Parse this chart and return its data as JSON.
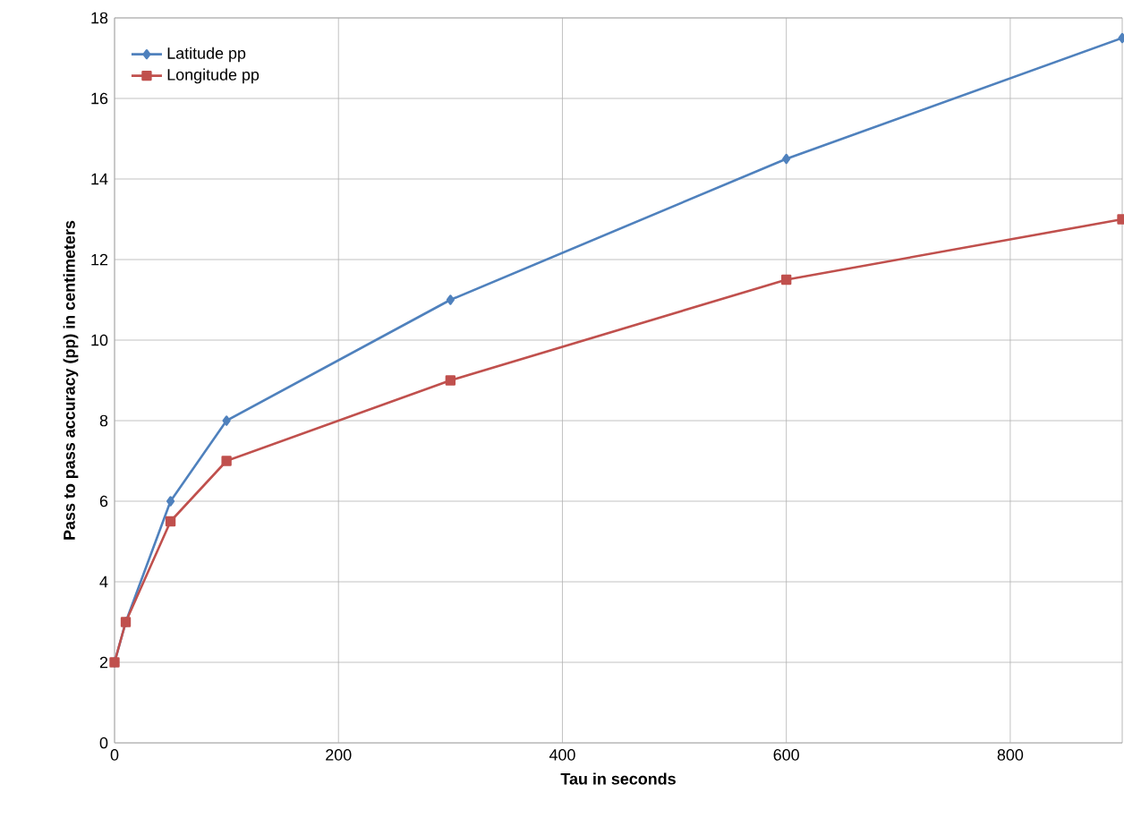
{
  "chart_data": {
    "type": "line",
    "xlabel": "Tau in seconds",
    "ylabel": "Pass to pass accuracy (pp) in centimeters",
    "x": [
      0,
      10,
      50,
      100,
      300,
      600,
      900
    ],
    "series": [
      {
        "name": "Latitude pp",
        "color": "#4f81bd",
        "marker": "diamond",
        "values": [
          2,
          3,
          6,
          8,
          11,
          14.5,
          17.5
        ]
      },
      {
        "name": "Longitude pp",
        "color": "#c0504d",
        "marker": "square",
        "values": [
          2,
          3,
          5.5,
          7,
          9,
          11.5,
          13
        ]
      }
    ],
    "xlim": [
      0,
      900
    ],
    "xticks": [
      0,
      200,
      400,
      600,
      800
    ],
    "ylim": [
      0,
      18
    ],
    "yticks": [
      0,
      2,
      4,
      6,
      8,
      10,
      12,
      14,
      16,
      18
    ],
    "grid": true,
    "legend": "top left",
    "line_style": "solid"
  }
}
